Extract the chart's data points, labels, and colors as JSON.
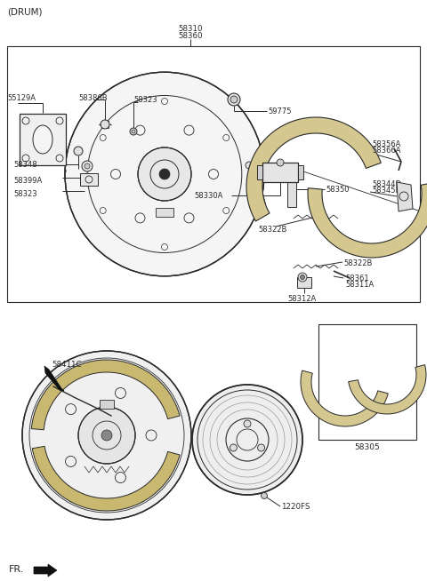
{
  "bg_color": "#ffffff",
  "line_color": "#2a2a2a",
  "fig_width": 4.8,
  "fig_height": 6.54,
  "dpi": 100,
  "labels": {
    "drum": "(DRUM)",
    "fr": "FR.",
    "58310": "58310",
    "58360": "58360",
    "55129A": "55129A",
    "58386B": "58386B",
    "58323_top": "58323",
    "58348": "58348",
    "58399A": "58399A",
    "58323_mid": "58323",
    "59775": "59775",
    "58330A": "58330A",
    "58350": "58350",
    "58322B_left": "58322B",
    "58322B_right": "58322B",
    "58356A": "58356A",
    "58366A": "58366A",
    "58344D": "58344D",
    "58345E": "58345E",
    "58361": "58361",
    "58311A": "58311A",
    "58312A": "58312A",
    "58411C": "58411C",
    "1220FS": "1220FS",
    "58305": "58305"
  }
}
